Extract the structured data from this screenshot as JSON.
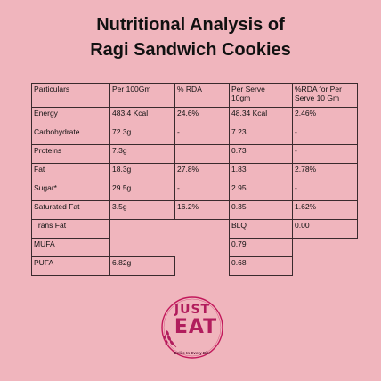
{
  "title": {
    "line1": "Nutritional Analysis of",
    "line2": "Ragi Sandwich Cookies"
  },
  "table": {
    "header": {
      "c0": "Particulars",
      "c1": "Per 100Gm",
      "c2": "% RDA",
      "c3_1": "Per Serve",
      "c3_2": "10gm",
      "c4_1": "%RDA  for Per",
      "c4_2": "Serve 10 Gm"
    },
    "rows": [
      {
        "name": "Energy",
        "per100": "483.4 Kcal",
        "rda": "24.6%",
        "serve": "48.34 Kcal",
        "rda_serve": "2.46%"
      },
      {
        "name": "Carbohydrate",
        "per100": "72.3g",
        "rda": "-",
        "serve": "7.23",
        "rda_serve": "-"
      },
      {
        "name": "Proteins",
        "per100": "7.3g",
        "rda": "",
        "serve": "0.73",
        "rda_serve": "-"
      },
      {
        "name": "Fat",
        "per100": "18.3g",
        "rda": "27.8%",
        "serve": "1.83",
        "rda_serve": "2.78%"
      },
      {
        "name": "Sugar*",
        "per100": "29.5g",
        "rda": "-",
        "serve": "2.95",
        "rda_serve": "-"
      },
      {
        "name": "Saturated Fat",
        "per100": "3.5g",
        "rda": "16.2%",
        "serve": "0.35",
        "rda_serve": "1.62%"
      },
      {
        "name": "Trans Fat",
        "per100": "",
        "rda": "",
        "serve": "BLQ",
        "rda_serve": "0.00"
      },
      {
        "name": "MUFA",
        "per100": "",
        "rda": "",
        "serve": "0.79",
        "rda_serve": ""
      },
      {
        "name": "PUFA",
        "per100": "6.82g",
        "rda": "",
        "serve": "0.68",
        "rda_serve": ""
      }
    ]
  },
  "logo": {
    "word1": "JUST",
    "word2": "EAT",
    "tagline": "Delite In Every Bite",
    "accent": "#b11d5d",
    "ring": "#c2185b"
  }
}
